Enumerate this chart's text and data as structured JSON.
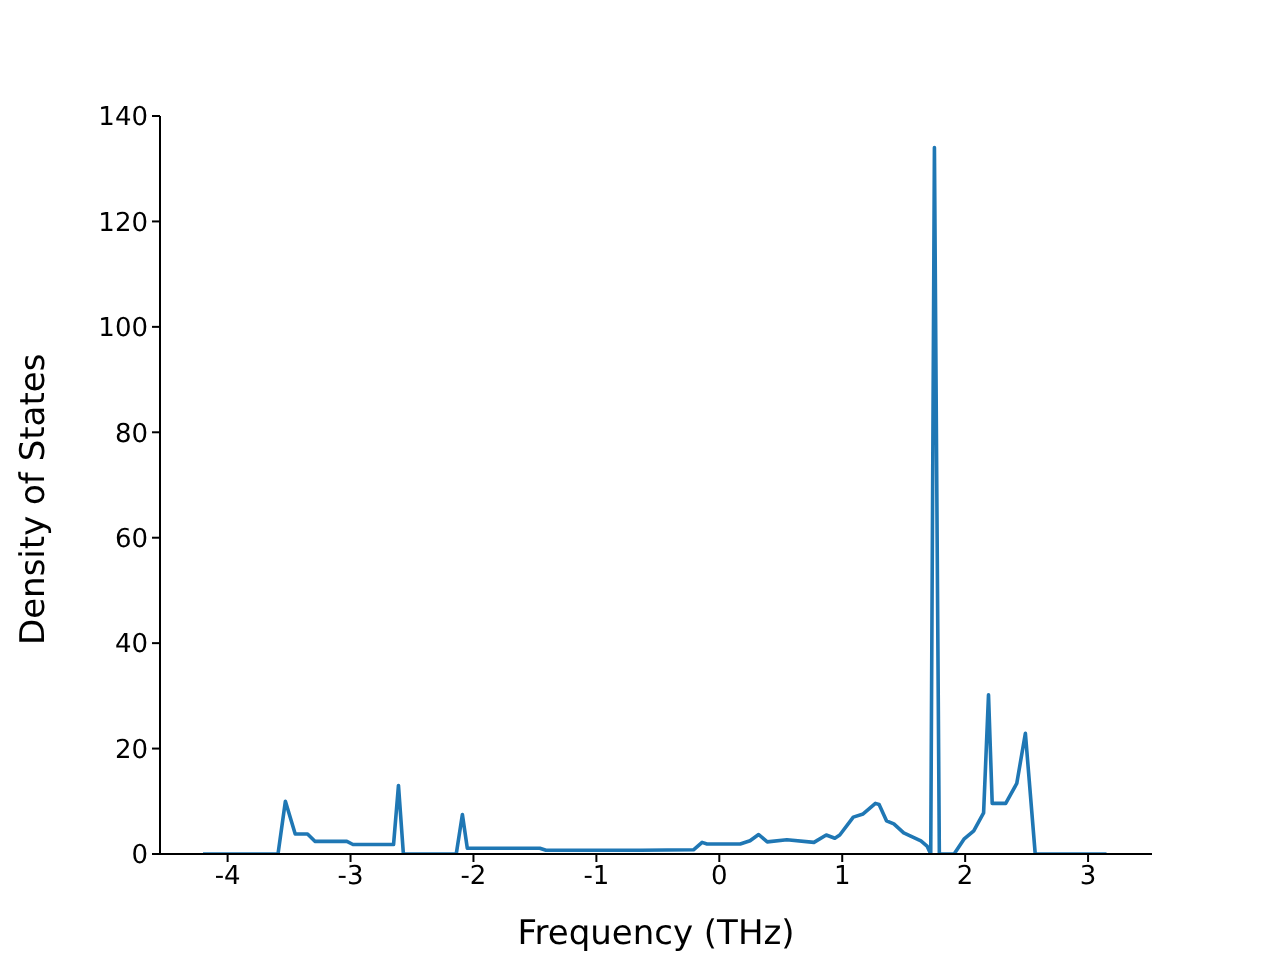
{
  "chart_data": {
    "type": "line",
    "xlabel": "Frequency (THz)",
    "ylabel": "Density of States",
    "x": [
      -4.2,
      -3.59,
      -3.53,
      -3.45,
      -3.35,
      -3.29,
      -3.03,
      -2.98,
      -2.65,
      -2.61,
      -2.57,
      -2.14,
      -2.09,
      -2.05,
      -1.46,
      -1.41,
      -0.64,
      -0.21,
      -0.14,
      -0.1,
      0.17,
      0.25,
      0.32,
      0.39,
      0.55,
      0.77,
      0.87,
      0.94,
      0.98,
      1.09,
      1.17,
      1.27,
      1.3,
      1.36,
      1.42,
      1.5,
      1.64,
      1.69,
      1.72,
      1.75,
      1.79,
      1.91,
      1.99,
      2.07,
      2.15,
      2.19,
      2.22,
      2.33,
      2.42,
      2.49,
      2.57,
      3.15
    ],
    "series": [
      {
        "color": "#1f77b4",
        "values": [
          0,
          0,
          10,
          3.8,
          3.8,
          2.4,
          2.4,
          1.8,
          1.8,
          13,
          0,
          0,
          7.5,
          1.1,
          1.1,
          0.7,
          0.7,
          0.8,
          2.2,
          1.9,
          1.9,
          2.5,
          3.7,
          2.3,
          2.7,
          2.2,
          3.6,
          3,
          3.6,
          7,
          7.6,
          9.6,
          9.4,
          6.3,
          5.7,
          4,
          2.5,
          1.5,
          0,
          134,
          0,
          0,
          2.8,
          4.4,
          7.8,
          30.2,
          9.6,
          9.6,
          13.4,
          22.9,
          0,
          0
        ]
      }
    ],
    "xlim": [
      -4.55,
      3.52
    ],
    "xticks": [
      -4,
      -3,
      -2,
      -1,
      0,
      1,
      2,
      3
    ],
    "ylim": [
      0,
      140
    ],
    "yticks": [
      0,
      20,
      40,
      60,
      80,
      100,
      120,
      140
    ],
    "grid": false,
    "legend": false,
    "marker": "none",
    "line_style": "solid"
  }
}
